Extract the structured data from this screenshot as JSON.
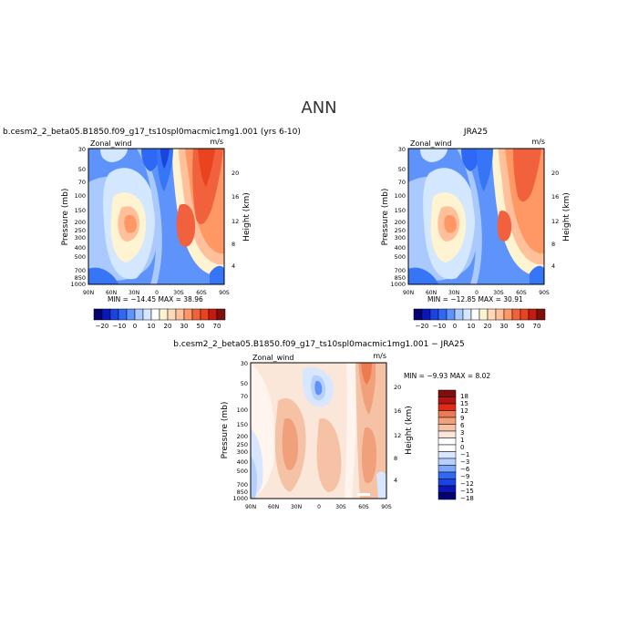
{
  "figure_title": "ANN",
  "chart_data": [
    {
      "type": "heatmap",
      "title": "b.cesm2_2_beta05.B1850.f09_g17_ts10spl0macmic1mg1.001 (yrs 6-10)",
      "variable": "Zonal_wind",
      "units": "m/s",
      "ylabel": "Pressure (mb)",
      "ylabel_right": "Height (km)",
      "x_ticks": [
        "90N",
        "60N",
        "30N",
        "0",
        "30S",
        "60S",
        "90S"
      ],
      "y_ticks": [
        "30",
        "50",
        "70",
        "100",
        "150",
        "200",
        "250",
        "300",
        "400",
        "500",
        "700",
        "850",
        "1000"
      ],
      "height_ticks": [
        "4",
        "8",
        "12",
        "16",
        "20"
      ],
      "stats": "MIN = −14.45   MAX =  38.96",
      "min": -14.45,
      "max": 38.96,
      "levels": [
        -20,
        -15,
        -10,
        -5,
        0,
        5,
        10,
        15,
        20,
        25,
        30,
        40,
        50,
        60,
        70
      ],
      "levels_label": [
        "−20",
        "−10",
        "0",
        "10",
        "20",
        "30",
        "50",
        "70"
      ],
      "colorbar": "horizontal"
    },
    {
      "type": "heatmap",
      "title": "JRA25",
      "variable": "Zonal_wind",
      "units": "m/s",
      "ylabel": "Pressure (mb)",
      "ylabel_right": "Height (km)",
      "x_ticks": [
        "90N",
        "60N",
        "30N",
        "0",
        "30S",
        "60S",
        "90S"
      ],
      "y_ticks": [
        "30",
        "50",
        "70",
        "100",
        "150",
        "200",
        "250",
        "300",
        "400",
        "500",
        "700",
        "850",
        "1000"
      ],
      "height_ticks": [
        "4",
        "8",
        "12",
        "16",
        "20"
      ],
      "stats": "MIN = −12.85   MAX =  30.91",
      "min": -12.85,
      "max": 30.91,
      "levels": [
        -20,
        -15,
        -10,
        -5,
        0,
        5,
        10,
        15,
        20,
        25,
        30,
        40,
        50,
        60,
        70
      ],
      "levels_label": [
        "−20",
        "−10",
        "0",
        "10",
        "20",
        "30",
        "50",
        "70"
      ],
      "colorbar": "horizontal"
    },
    {
      "type": "heatmap",
      "title": "b.cesm2_2_beta05.B1850.f09_g17_ts10spl0macmic1mg1.001 − JRA25",
      "variable": "Zonal_wind",
      "units": "m/s",
      "ylabel": "Pressure (mb)",
      "ylabel_right": "Height (km)",
      "x_ticks": [
        "90N",
        "60N",
        "30N",
        "0",
        "30S",
        "60S",
        "90S"
      ],
      "y_ticks": [
        "30",
        "50",
        "70",
        "100",
        "150",
        "200",
        "250",
        "300",
        "400",
        "500",
        "700",
        "850",
        "1000"
      ],
      "height_ticks": [
        "4",
        "8",
        "12",
        "16",
        "20"
      ],
      "stats": "MIN =   −9.93   MAX =    8.02",
      "min": -9.93,
      "max": 8.02,
      "levels": [
        -18,
        -15,
        -12,
        -9,
        -6,
        -3,
        -1,
        0,
        1,
        3,
        6,
        9,
        12,
        15,
        18
      ],
      "levels_label": [
        "18",
        "15",
        "12",
        "9",
        "6",
        "3",
        "1",
        "0",
        "−1",
        "−3",
        "−6",
        "−9",
        "−12",
        "−15",
        "−18"
      ],
      "colorbar": "vertical"
    }
  ]
}
